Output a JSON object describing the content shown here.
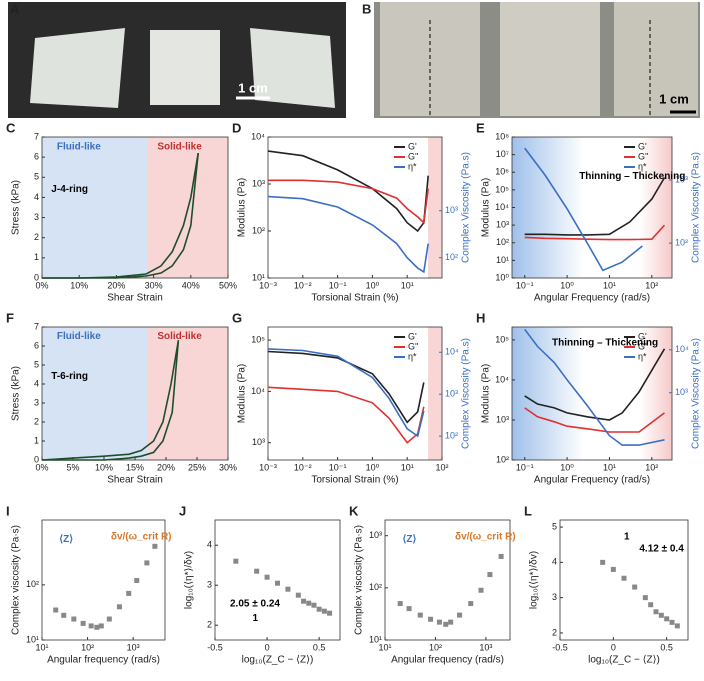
{
  "photos": [
    {
      "panel": "A",
      "scale_label": "1 cm"
    },
    {
      "panel": "B",
      "scale_label": "1 cm"
    }
  ],
  "chart_data": [
    {
      "panel": "C",
      "type": "line",
      "xlabel": "Shear Strain",
      "ylabel": "Stress (kPa)",
      "xscale": "linear",
      "yscale": "linear",
      "xlim": [
        0,
        50
      ],
      "xticks": [
        {
          "value": 0,
          "label": "0%"
        },
        {
          "value": 10,
          "label": "10%"
        },
        {
          "value": 20,
          "label": "20%"
        },
        {
          "value": 30,
          "label": "30%"
        },
        {
          "value": 40,
          "label": "40%"
        },
        {
          "value": 50,
          "label": "50%"
        }
      ],
      "ylim": [
        0,
        7
      ],
      "yticks": [
        0,
        1,
        2,
        3,
        4,
        5,
        6,
        7
      ],
      "annotations": [
        "Fluid-like",
        "Solid-like",
        "J-4-ring"
      ],
      "series": [
        {
          "color": "#1f4d2b",
          "x": [
            0,
            10,
            20,
            28,
            32,
            35,
            38,
            40,
            42
          ],
          "values": [
            0,
            0,
            0.05,
            0.2,
            0.6,
            1.3,
            2.6,
            4,
            6.2
          ]
        },
        {
          "color": "#1f4d2b",
          "x": [
            0,
            10,
            20,
            28,
            32,
            35,
            38,
            40,
            42
          ],
          "values": [
            0,
            0,
            0,
            0.1,
            0.25,
            0.6,
            1.4,
            2.6,
            6.2
          ]
        }
      ]
    },
    {
      "panel": "D",
      "type": "line",
      "xlabel": "Torsional Strain (%)",
      "ylabel": "Modulus (Pa)",
      "y2label": "Complex Viscosity (Pa.s)",
      "xscale": "log",
      "yscale": "log",
      "y2scale": "log",
      "legend": "upper right",
      "xlim": [
        0.001,
        100
      ],
      "xticks": [
        {
          "value": 0.001,
          "label": "10⁻³"
        },
        {
          "value": 0.01,
          "label": "10⁻²"
        },
        {
          "value": 0.1,
          "label": "10⁻¹"
        },
        {
          "value": 1,
          "label": "10⁰"
        },
        {
          "value": 10,
          "label": "10¹"
        }
      ],
      "ylim": [
        10,
        10000
      ],
      "yticks": [
        {
          "value": 10,
          "label": "10¹"
        },
        {
          "value": 100,
          "label": "10²"
        },
        {
          "value": 1000,
          "label": "10³"
        },
        {
          "value": 10000,
          "label": "10⁴"
        }
      ],
      "y2lim": [
        37,
        37000
      ],
      "y2ticks": [
        {
          "value": 100,
          "label": "10²"
        },
        {
          "value": 1000,
          "label": "10³"
        }
      ],
      "series": [
        {
          "name": "G'",
          "color": "#222222",
          "x": [
            0.001,
            0.01,
            0.1,
            1,
            5,
            10,
            20,
            30,
            40
          ],
          "values": [
            5000,
            4000,
            2000,
            800,
            300,
            150,
            100,
            150,
            1500
          ]
        },
        {
          "name": "G''",
          "color": "#e03030",
          "x": [
            0.001,
            0.01,
            0.1,
            1,
            5,
            10,
            20,
            30,
            40
          ],
          "values": [
            1200,
            1200,
            1100,
            800,
            500,
            300,
            200,
            150,
            800
          ]
        },
        {
          "name": "η*",
          "color": "#3a6fc4",
          "axis": "y2",
          "x": [
            0.001,
            0.01,
            0.1,
            1,
            5,
            10,
            20,
            30,
            40
          ],
          "values": [
            2000,
            1800,
            1200,
            500,
            200,
            100,
            60,
            50,
            200
          ]
        }
      ]
    },
    {
      "panel": "E",
      "type": "line",
      "xlabel": "Angular Frequency (rad/s)",
      "ylabel": "Modulus (Pa)",
      "y2label": "Complex Viscosity (Pa.s)",
      "xscale": "log",
      "yscale": "log",
      "y2scale": "log",
      "legend": "upper right",
      "annotations": [
        "Thinning – Thickening"
      ],
      "xlim": [
        0.05,
        300
      ],
      "xticks": [
        {
          "value": 0.1,
          "label": "10⁻¹"
        },
        {
          "value": 1,
          "label": "10⁰"
        },
        {
          "value": 10,
          "label": "10¹"
        },
        {
          "value": 100,
          "label": "10²"
        }
      ],
      "ylim": [
        1,
        100000000
      ],
      "yticks": [
        {
          "value": 1,
          "label": "10⁰"
        },
        {
          "value": 10,
          "label": "10¹"
        },
        {
          "value": 100,
          "label": "10²"
        },
        {
          "value": 1000,
          "label": "10³"
        },
        {
          "value": 10000,
          "label": "10⁴"
        },
        {
          "value": 100000,
          "label": "10⁵"
        },
        {
          "value": 1000000,
          "label": "10⁶"
        },
        {
          "value": 10000000,
          "label": "10⁷"
        },
        {
          "value": 100000000,
          "label": "10⁸"
        }
      ],
      "y2lim": [
        28,
        4800
      ],
      "y2ticks": [
        {
          "value": 100,
          "label": "10²"
        },
        {
          "value": 1000,
          "label": "10³"
        }
      ],
      "series": [
        {
          "name": "G'",
          "color": "#222222",
          "x": [
            0.1,
            0.3,
            1,
            3,
            10,
            30,
            100,
            200
          ],
          "values": [
            300,
            300,
            280,
            280,
            300,
            1500,
            30000,
            500000
          ]
        },
        {
          "name": "G''",
          "color": "#e03030",
          "x": [
            0.1,
            0.3,
            1,
            3,
            10,
            30,
            100,
            200
          ],
          "values": [
            200,
            180,
            170,
            160,
            150,
            150,
            160,
            1000
          ]
        },
        {
          "name": "η*",
          "color": "#3a6fc4",
          "axis": "y2",
          "x": [
            0.1,
            0.3,
            1,
            3,
            7,
            20,
            60
          ],
          "values": [
            3200,
            1200,
            350,
            100,
            37,
            50,
            90
          ]
        }
      ]
    },
    {
      "panel": "F",
      "type": "line",
      "xlabel": "Shear Strain",
      "ylabel": "Stress (kPa)",
      "xscale": "linear",
      "yscale": "linear",
      "xlim": [
        0,
        30
      ],
      "xticks": [
        {
          "value": 0,
          "label": "0%"
        },
        {
          "value": 5,
          "label": "5%"
        },
        {
          "value": 10,
          "label": "10%"
        },
        {
          "value": 15,
          "label": "15%"
        },
        {
          "value": 20,
          "label": "20%"
        },
        {
          "value": 25,
          "label": "25%"
        },
        {
          "value": 30,
          "label": "30%"
        }
      ],
      "ylim": [
        0,
        7
      ],
      "yticks": [
        0,
        1,
        2,
        3,
        4,
        5,
        6,
        7
      ],
      "annotations": [
        "Fluid-like",
        "Solid-like",
        "T-6-ring"
      ],
      "series": [
        {
          "color": "#1f4d2b",
          "x": [
            0,
            5,
            10,
            14,
            16,
            18,
            19.5,
            20.8,
            22
          ],
          "values": [
            0,
            0.1,
            0.2,
            0.3,
            0.5,
            1,
            2,
            4,
            6.3
          ]
        },
        {
          "color": "#1f4d2b",
          "x": [
            0,
            5,
            10,
            14,
            16,
            18,
            19.5,
            21,
            22
          ],
          "values": [
            0,
            0,
            0,
            0.1,
            0.2,
            0.4,
            1,
            2.5,
            6.3
          ]
        }
      ]
    },
    {
      "panel": "G",
      "type": "line",
      "xlabel": "Torsional Strain (%)",
      "ylabel": "Modulus (Pa)",
      "y2label": "Complex Viscosity (Pa.s)",
      "xscale": "log",
      "yscale": "log",
      "y2scale": "log",
      "legend": "upper right",
      "xlim": [
        0.001,
        100
      ],
      "xticks": [
        {
          "value": 0.001,
          "label": "10⁻³"
        },
        {
          "value": 0.01,
          "label": "10⁻²"
        },
        {
          "value": 0.1,
          "label": "10⁻¹"
        },
        {
          "value": 1,
          "label": "10⁰"
        },
        {
          "value": 10,
          "label": "10¹"
        },
        {
          "value": 100,
          "label": "10²"
        }
      ],
      "ylim": [
        460,
        180000
      ],
      "yticks": [
        {
          "value": 1000,
          "label": "10³"
        },
        {
          "value": 10000,
          "label": "10⁴"
        },
        {
          "value": 100000,
          "label": "10⁵"
        }
      ],
      "y2lim": [
        27,
        40000
      ],
      "y2ticks": [
        {
          "value": 100,
          "label": "10²"
        },
        {
          "value": 1000,
          "label": "10³"
        },
        {
          "value": 10000,
          "label": "10⁴"
        }
      ],
      "series": [
        {
          "name": "G'",
          "color": "#222222",
          "x": [
            0.001,
            0.01,
            0.1,
            1,
            3,
            10,
            20,
            30
          ],
          "values": [
            60000,
            55000,
            45000,
            22000,
            9000,
            2500,
            4000,
            15000
          ]
        },
        {
          "name": "G''",
          "color": "#e03030",
          "x": [
            0.001,
            0.01,
            0.1,
            1,
            3,
            10,
            20,
            30
          ],
          "values": [
            12000,
            11000,
            10000,
            6000,
            3000,
            1000,
            1500,
            5000
          ]
        },
        {
          "name": "η*",
          "color": "#3a6fc4",
          "axis": "y2",
          "x": [
            0.001,
            0.01,
            0.1,
            1,
            3,
            10,
            20,
            30
          ],
          "values": [
            12000,
            11000,
            8000,
            2500,
            800,
            150,
            100,
            400
          ]
        }
      ]
    },
    {
      "panel": "H",
      "type": "line",
      "xlabel": "Angular Frequency (rad/s)",
      "ylabel": "Modulus (Pa)",
      "y2label": "Complex Viscosity (Pa.s)",
      "xscale": "log",
      "yscale": "log",
      "y2scale": "log",
      "legend": "upper right",
      "annotations": [
        "Thinning – Thickening"
      ],
      "xlim": [
        0.05,
        300
      ],
      "xticks": [
        {
          "value": 0.1,
          "label": "10⁻¹"
        },
        {
          "value": 1,
          "label": "10⁰"
        },
        {
          "value": 10,
          "label": "10¹"
        },
        {
          "value": 100,
          "label": "10²"
        }
      ],
      "ylim": [
        100,
        210000
      ],
      "yticks": [
        {
          "value": 100,
          "label": "10²"
        },
        {
          "value": 1000,
          "label": "10³"
        },
        {
          "value": 10000,
          "label": "10⁴"
        },
        {
          "value": 100000,
          "label": "10⁵"
        }
      ],
      "y2lim": [
        27,
        34000
      ],
      "y2ticks": [
        {
          "value": 1000,
          "label": "10³"
        },
        {
          "value": 10000,
          "label": "10⁴"
        }
      ],
      "series": [
        {
          "name": "G'",
          "color": "#222222",
          "x": [
            0.1,
            0.2,
            0.5,
            1,
            3,
            10,
            20,
            50,
            200
          ],
          "values": [
            4000,
            2500,
            2000,
            1500,
            1200,
            1000,
            1500,
            5000,
            60000
          ]
        },
        {
          "name": "G''",
          "color": "#e03030",
          "x": [
            0.1,
            0.2,
            0.5,
            1,
            3,
            10,
            20,
            50,
            200
          ],
          "values": [
            2000,
            1200,
            900,
            700,
            600,
            500,
            500,
            500,
            1500
          ]
        },
        {
          "name": "η*",
          "color": "#3a6fc4",
          "axis": "y2",
          "x": [
            0.1,
            0.2,
            0.5,
            1,
            3,
            10,
            20,
            50,
            200
          ],
          "values": [
            30000,
            12000,
            5000,
            2000,
            500,
            100,
            60,
            60,
            80
          ]
        }
      ]
    },
    {
      "panel": "I",
      "type": "scatter",
      "xlabel": "Angular frequency (rad/s)",
      "ylabel": "Complex viscosity (Pa·s)",
      "xscale": "log",
      "yscale": "log",
      "annotations": [
        "⟨Z⟩",
        "δv/(ω_crit R)"
      ],
      "xlim": [
        10,
        5000
      ],
      "xticks": [
        {
          "value": 10,
          "label": "10¹"
        },
        {
          "value": 100,
          "label": "10²"
        },
        {
          "value": 1000,
          "label": "10³"
        }
      ],
      "ylim": [
        10,
        1500
      ],
      "yticks": [
        {
          "value": 10,
          "label": "10¹"
        },
        {
          "value": 100,
          "label": "10²"
        }
      ],
      "series": [
        {
          "color": "#888888",
          "x": [
            20,
            30,
            50,
            80,
            120,
            160,
            200,
            300,
            500,
            800,
            1200,
            2000,
            3000
          ],
          "values": [
            35,
            28,
            24,
            20,
            18,
            17,
            18,
            24,
            40,
            70,
            120,
            250,
            500
          ]
        }
      ]
    },
    {
      "panel": "J",
      "type": "scatter",
      "xlabel": "log₁₀(Z_C − ⟨Z⟩)",
      "ylabel": "log₁₀(⟨η*⟩/δv)",
      "xscale": "linear",
      "yscale": "linear",
      "annotations": [
        "2.05 ± 0.24",
        "1"
      ],
      "xlim": [
        -0.5,
        0.7
      ],
      "xticks": [
        -0.5,
        0,
        0.5
      ],
      "ylim": [
        1.63,
        4.63
      ],
      "yticks": [
        2,
        3,
        4
      ],
      "series": [
        {
          "color": "#888888",
          "x": [
            -0.3,
            -0.1,
            0,
            0.1,
            0.2,
            0.3,
            0.35,
            0.4,
            0.45,
            0.5,
            0.55,
            0.6
          ],
          "values": [
            3.6,
            3.35,
            3.2,
            3.05,
            2.9,
            2.75,
            2.6,
            2.55,
            2.5,
            2.4,
            2.35,
            2.3
          ]
        }
      ]
    },
    {
      "panel": "K",
      "type": "scatter",
      "xlabel": "Angular frequency (rad/s)",
      "ylabel": "Complex viscosity (Pa·s)",
      "xscale": "log",
      "yscale": "log",
      "annotations": [
        "⟨Z⟩",
        "δv/(ω_crit R)"
      ],
      "xlim": [
        10,
        3000
      ],
      "xticks": [
        {
          "value": 10,
          "label": "10¹"
        },
        {
          "value": 100,
          "label": "10²"
        },
        {
          "value": 1000,
          "label": "10³"
        }
      ],
      "ylim": [
        10,
        2000
      ],
      "yticks": [
        {
          "value": 10,
          "label": "10¹"
        },
        {
          "value": 100,
          "label": "10²"
        },
        {
          "value": 1000,
          "label": "10³"
        }
      ],
      "series": [
        {
          "color": "#888888",
          "x": [
            20,
            30,
            50,
            80,
            120,
            160,
            200,
            300,
            500,
            800,
            1200,
            2000
          ],
          "values": [
            50,
            40,
            30,
            25,
            22,
            20,
            22,
            30,
            50,
            90,
            180,
            400
          ]
        }
      ]
    },
    {
      "panel": "L",
      "type": "scatter",
      "xlabel": "log₁₀(Z_C − ⟨Z⟩)",
      "ylabel": "log₁₀(⟨η*⟩/δv)",
      "xscale": "linear",
      "yscale": "linear",
      "annotations": [
        "1",
        "4.12 ± 0.4"
      ],
      "xlim": [
        -0.5,
        0.7
      ],
      "xticks": [
        -0.5,
        0,
        0.5
      ],
      "ylim": [
        1.8,
        5.2
      ],
      "yticks": [
        2,
        3,
        4,
        5
      ],
      "series": [
        {
          "color": "#888888",
          "x": [
            -0.1,
            0,
            0.1,
            0.2,
            0.3,
            0.35,
            0.4,
            0.45,
            0.5,
            0.55,
            0.6
          ],
          "values": [
            4.0,
            3.8,
            3.55,
            3.3,
            3.0,
            2.8,
            2.6,
            2.5,
            2.4,
            2.3,
            2.2
          ]
        }
      ]
    }
  ]
}
